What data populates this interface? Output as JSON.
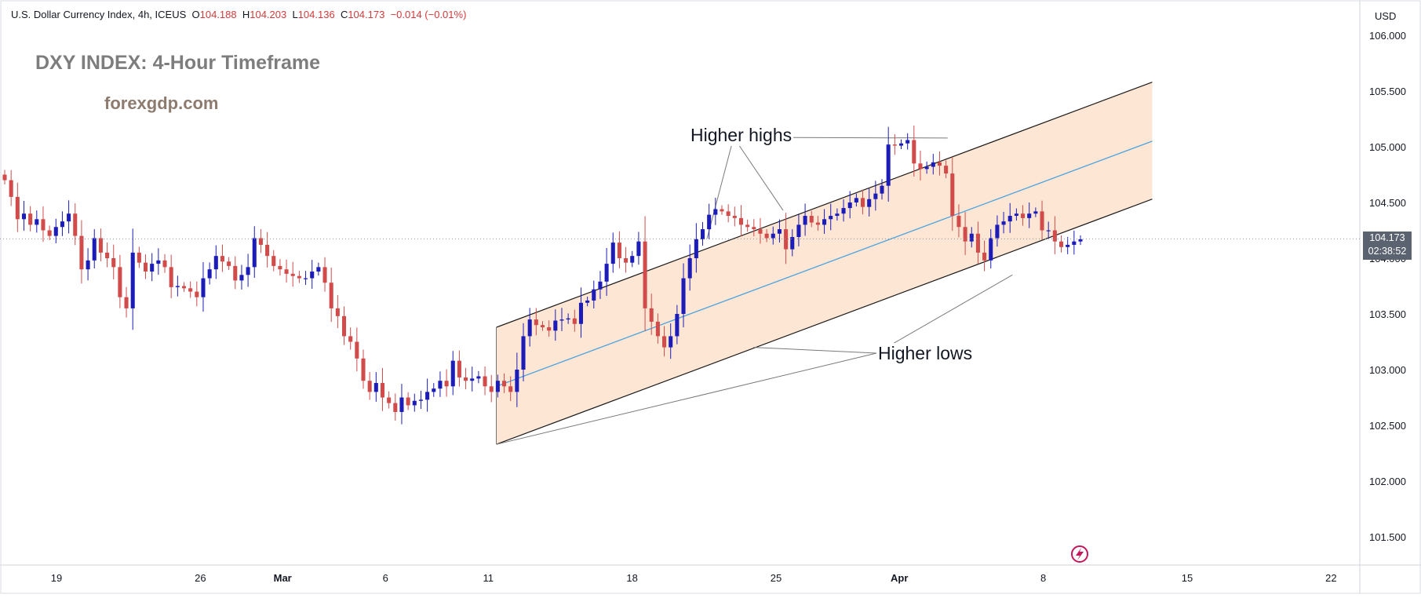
{
  "header": {
    "instrument": "U.S. Dollar Currency Index, 4h, ICEUS",
    "open_label": "O",
    "open": "104.188",
    "high_label": "H",
    "high": "104.203",
    "low_label": "L",
    "low": "104.136",
    "close_label": "C",
    "close": "104.173",
    "change": "−0.014 (−0.01%)"
  },
  "overlay": {
    "title": "DXY INDEX: 4-Hour Timeframe",
    "website": "forexgdp.com",
    "higher_highs_label": "Higher highs",
    "higher_lows_label": "Higher lows"
  },
  "price_axis": {
    "currency": "USD",
    "current_price": "104.173",
    "countdown": "02:38:52"
  },
  "colors": {
    "up": "#1c1cb8",
    "down": "#d14b4b",
    "channel_fill": "#fde2cc",
    "channel_line": "#1a1a1a",
    "midline": "#4aa3df",
    "grid_text": "#131722"
  },
  "chart_data": {
    "type": "candlestick",
    "timeframe": "4h",
    "ylim": [
      101.25,
      106.25
    ],
    "y_ticks": [
      101.5,
      102.0,
      102.5,
      103.0,
      103.5,
      104.0,
      104.5,
      105.0,
      105.5,
      106.0
    ],
    "y_tick_labels": [
      "101.500",
      "102.000",
      "102.500",
      "103.000",
      "103.500",
      "104.000",
      "104.500",
      "105.000",
      "105.500",
      "106.000"
    ],
    "x_range_days": [
      0,
      35.5
    ],
    "x_ticks": [
      {
        "label": "19",
        "day": 1
      },
      {
        "label": "26",
        "day": 8
      },
      {
        "label": "Mar",
        "day": 12,
        "bold": true
      },
      {
        "label": "6",
        "day": 17
      },
      {
        "label": "11",
        "day": 22
      },
      {
        "label": "18",
        "day": 29
      },
      {
        "label": "25",
        "day": 36
      },
      {
        "label": "Apr",
        "day": 42,
        "bold": true
      },
      {
        "label": "8",
        "day": 49
      },
      {
        "label": "15",
        "day": 56
      },
      {
        "label": "22",
        "day": 63
      }
    ],
    "current_price": 104.173,
    "channel": {
      "start_day": 22.4,
      "end_day": 54.3,
      "upper": [
        103.38,
        105.58
      ],
      "lower": [
        102.33,
        104.53
      ],
      "mid": [
        102.85,
        105.05
      ]
    },
    "higher_highs_points": [
      {
        "day": 32.8,
        "price": 104.15
      },
      {
        "day": 36.5,
        "price": 104.4
      },
      {
        "day": 44.5,
        "price": 105.05
      }
    ],
    "higher_lows_points": [
      {
        "day": 22.4,
        "price": 102.33
      },
      {
        "day": 34.9,
        "price": 103.2
      },
      {
        "day": 47.5,
        "price": 103.85
      }
    ],
    "closes": [
      104.7,
      104.55,
      104.35,
      104.4,
      104.3,
      104.35,
      104.25,
      104.2,
      104.28,
      104.33,
      104.4,
      104.2,
      103.9,
      103.98,
      104.18,
      104.05,
      104.0,
      103.92,
      103.65,
      103.55,
      104.05,
      103.96,
      103.88,
      103.95,
      103.98,
      103.92,
      103.74,
      103.75,
      103.73,
      103.7,
      103.65,
      103.82,
      103.9,
      104.02,
      103.97,
      103.93,
      103.8,
      103.85,
      103.92,
      104.18,
      104.12,
      104.02,
      103.93,
      103.9,
      103.86,
      103.84,
      103.82,
      103.82,
      103.88,
      103.92,
      103.78,
      103.55,
      103.48,
      103.3,
      103.25,
      103.1,
      102.9,
      102.8,
      102.88,
      102.75,
      102.7,
      102.62,
      102.75,
      102.68,
      102.72,
      102.73,
      102.8,
      102.83,
      102.9,
      102.85,
      103.08,
      102.93,
      102.9,
      102.92,
      102.94,
      102.85,
      102.8,
      102.9,
      102.85,
      102.8,
      103.0,
      103.3,
      103.45,
      103.4,
      103.38,
      103.35,
      103.44,
      103.45,
      103.46,
      103.41,
      103.6,
      103.62,
      103.72,
      103.79,
      103.95,
      104.14,
      104.0,
      103.96,
      104.02,
      104.15,
      103.55,
      103.43,
      103.3,
      103.2,
      103.3,
      103.5,
      103.82,
      104.0,
      104.17,
      104.26,
      104.39,
      104.44,
      104.42,
      104.38,
      104.36,
      104.3,
      104.28,
      104.26,
      104.22,
      104.18,
      104.22,
      104.26,
      104.08,
      104.19,
      104.3,
      104.38,
      104.32,
      104.3,
      104.35,
      104.38,
      104.4,
      104.45,
      104.5,
      104.54,
      104.46,
      104.53,
      104.58,
      104.65,
      105.02,
      105.01,
      105.03,
      105.06,
      104.85,
      104.8,
      104.82,
      104.86,
      104.83,
      104.76,
      104.38,
      104.28,
      104.15,
      104.22,
      104.05,
      103.98,
      104.18,
      104.3,
      104.33,
      104.38,
      104.4,
      104.36,
      104.4,
      104.42,
      104.25,
      104.25,
      104.15,
      104.1,
      104.12,
      104.15,
      104.17
    ]
  }
}
